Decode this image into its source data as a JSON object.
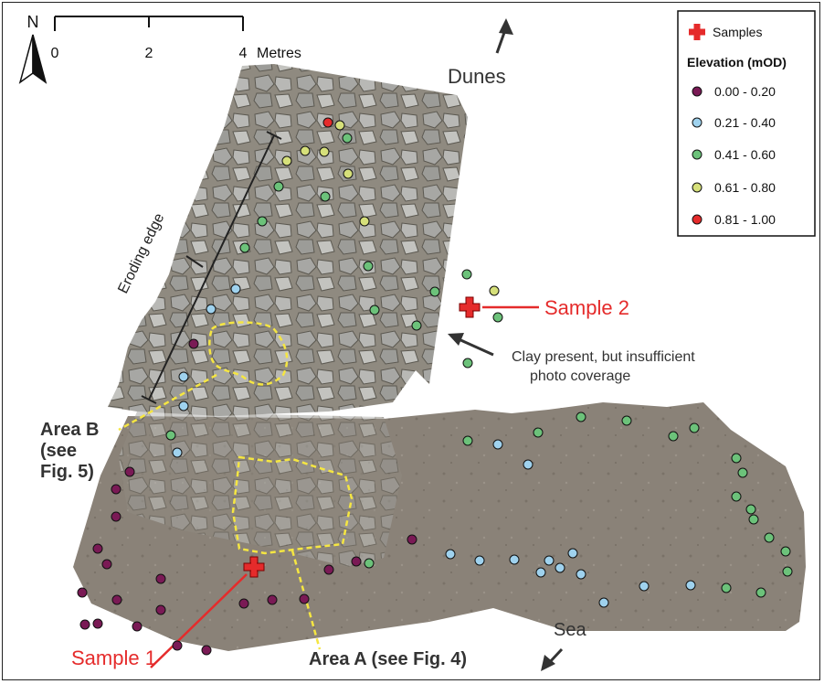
{
  "north_arrow": {
    "label": "N"
  },
  "scale_bar": {
    "ticks": [
      "0",
      "2",
      "4"
    ],
    "unit": "Metres"
  },
  "directions": {
    "dunes": "Dunes",
    "sea": "Sea"
  },
  "legend": {
    "samples_label": "Samples",
    "title": "Elevation (mOD)",
    "classes": [
      {
        "label": "0.00 - 0.20",
        "color": "#7a1a55"
      },
      {
        "label": "0.21 - 0.40",
        "color": "#9fd2ee"
      },
      {
        "label": "0.41 - 0.60",
        "color": "#6cc27a"
      },
      {
        "label": "0.61 - 0.80",
        "color": "#d6e07a"
      },
      {
        "label": "0.81 - 1.00",
        "color": "#e52b2b"
      }
    ]
  },
  "annotations": {
    "sample1": "Sample 1",
    "sample2": "Sample 2",
    "eroding_edge": "Eroding edge",
    "clay_line1": "Clay present, but insufficient",
    "clay_line2": "photo coverage",
    "area_a": "Area A (see Fig. 4)",
    "area_b_line1": "Area B",
    "area_b_line2": "(see",
    "area_b_line3": "Fig. 5)"
  },
  "colors": {
    "sample_marker": "#e52b2b",
    "area_outline": "#f5e642",
    "annotation_red": "#e52b2b"
  }
}
